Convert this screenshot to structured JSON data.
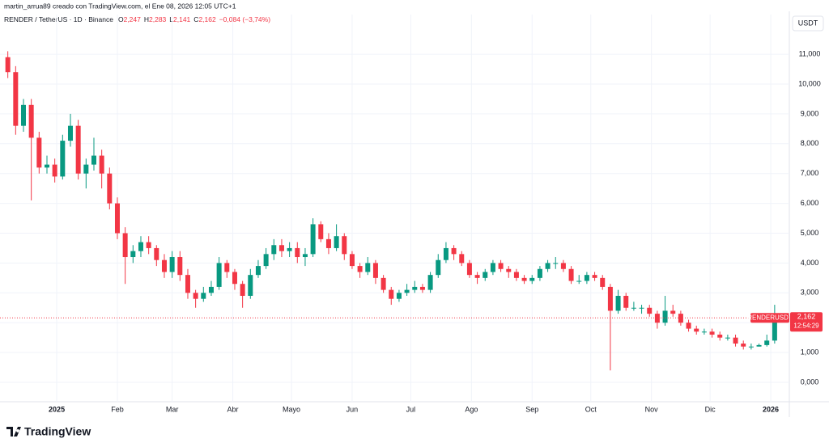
{
  "attribution": "martin_arrua89 creado con TradingView.com, el Ene 08, 2026 12:05 UTC+1",
  "symbol_line": "RENDER / TetherUS · 1D · Binance",
  "ohlc_legend": [
    {
      "key": "O",
      "value": "2,247"
    },
    {
      "key": "H",
      "value": "2,283"
    },
    {
      "key": "L",
      "value": "2,141"
    },
    {
      "key": "C",
      "value": "2,162"
    }
  ],
  "change": "−0,084 (−3,74%)",
  "currency": "USDT",
  "current": {
    "symbol": "RENDERUSDT",
    "price": "2,162",
    "countdown": "12:54:29"
  },
  "logo": "TradingView",
  "chart_data": {
    "type": "candlestick",
    "up_color": "#089981",
    "down_color": "#f23645",
    "grid": true,
    "xlim": [
      -29,
      374.5
    ],
    "ylim": [
      -0.65,
      12.33
    ],
    "xticks": [
      {
        "value": 0,
        "label": "2025"
      },
      {
        "value": 31,
        "label": "Feb"
      },
      {
        "value": 59,
        "label": "Mar"
      },
      {
        "value": 90,
        "label": "Abr"
      },
      {
        "value": 120,
        "label": "Mayo"
      },
      {
        "value": 151,
        "label": "Jun"
      },
      {
        "value": 181,
        "label": "Jul"
      },
      {
        "value": 212,
        "label": "Ago"
      },
      {
        "value": 243,
        "label": "Sep"
      },
      {
        "value": 273,
        "label": "Oct"
      },
      {
        "value": 304,
        "label": "Nov"
      },
      {
        "value": 334,
        "label": "Dic"
      },
      {
        "value": 365,
        "label": "2026"
      }
    ],
    "yticks": [
      {
        "value": 0,
        "label": "0,000"
      },
      {
        "value": 1,
        "label": "1,000"
      },
      {
        "value": 2,
        "label": "2,000"
      },
      {
        "value": 3,
        "label": "3,000"
      },
      {
        "value": 4,
        "label": "4,000"
      },
      {
        "value": 5,
        "label": "5,000"
      },
      {
        "value": 6,
        "label": "6,000"
      },
      {
        "value": 7,
        "label": "7,000"
      },
      {
        "value": 8,
        "label": "8,000"
      },
      {
        "value": 9,
        "label": "9,000"
      },
      {
        "value": 10,
        "label": "10,000"
      },
      {
        "value": 11,
        "label": "11,000"
      }
    ],
    "x": [
      -25,
      -21,
      -17,
      -13,
      -9,
      -5,
      -1,
      3,
      7,
      11,
      15,
      19,
      23,
      27,
      31,
      35,
      39,
      43,
      47,
      51,
      55,
      59,
      63,
      67,
      71,
      75,
      79,
      83,
      87,
      91,
      95,
      99,
      103,
      107,
      111,
      115,
      119,
      123,
      127,
      131,
      135,
      139,
      143,
      147,
      151,
      155,
      159,
      163,
      167,
      171,
      175,
      179,
      183,
      187,
      191,
      195,
      199,
      203,
      207,
      211,
      215,
      219,
      223,
      227,
      231,
      235,
      239,
      243,
      247,
      251,
      255,
      259,
      263,
      267,
      271,
      275,
      279,
      283,
      287,
      291,
      295,
      299,
      303,
      307,
      311,
      315,
      319,
      323,
      327,
      331,
      335,
      339,
      343,
      347,
      351,
      355,
      359,
      363,
      367,
      371
    ],
    "ohlc": [
      [
        10.9,
        11.1,
        10.2,
        10.4
      ],
      [
        10.4,
        10.6,
        8.3,
        8.6
      ],
      [
        8.6,
        9.5,
        8.4,
        9.3
      ],
      [
        9.3,
        9.5,
        6.1,
        8.2
      ],
      [
        8.2,
        8.4,
        7.0,
        7.2
      ],
      [
        7.2,
        7.6,
        7.0,
        7.3
      ],
      [
        7.3,
        7.5,
        6.7,
        6.9
      ],
      [
        6.9,
        8.3,
        6.8,
        8.1
      ],
      [
        8.1,
        9.0,
        7.9,
        8.6
      ],
      [
        8.6,
        8.8,
        6.8,
        7.0
      ],
      [
        7.0,
        7.5,
        6.5,
        7.3
      ],
      [
        7.3,
        8.2,
        7.1,
        7.6
      ],
      [
        7.6,
        7.8,
        6.5,
        7.0
      ],
      [
        7.0,
        7.2,
        5.8,
        6.0
      ],
      [
        6.0,
        6.2,
        4.8,
        5.0
      ],
      [
        5.0,
        5.2,
        3.3,
        4.2
      ],
      [
        4.2,
        4.6,
        4.0,
        4.4
      ],
      [
        4.4,
        4.9,
        4.2,
        4.7
      ],
      [
        4.7,
        4.9,
        4.3,
        4.5
      ],
      [
        4.5,
        4.6,
        3.9,
        4.1
      ],
      [
        4.1,
        4.3,
        3.5,
        3.7
      ],
      [
        3.7,
        4.4,
        3.5,
        4.2
      ],
      [
        4.2,
        4.4,
        3.4,
        3.6
      ],
      [
        3.6,
        3.8,
        2.8,
        3.0
      ],
      [
        3.0,
        3.1,
        2.5,
        2.8
      ],
      [
        2.8,
        3.2,
        2.7,
        3.0
      ],
      [
        3.0,
        3.4,
        2.9,
        3.2
      ],
      [
        3.2,
        4.2,
        3.1,
        4.0
      ],
      [
        4.0,
        4.1,
        3.5,
        3.7
      ],
      [
        3.7,
        3.8,
        3.1,
        3.3
      ],
      [
        3.3,
        3.4,
        2.5,
        2.9
      ],
      [
        2.9,
        3.8,
        2.8,
        3.6
      ],
      [
        3.6,
        4.1,
        3.5,
        3.9
      ],
      [
        3.9,
        4.5,
        3.8,
        4.3
      ],
      [
        4.3,
        4.8,
        4.1,
        4.6
      ],
      [
        4.6,
        4.8,
        4.2,
        4.4
      ],
      [
        4.4,
        4.7,
        4.2,
        4.5
      ],
      [
        4.5,
        4.7,
        4.0,
        4.2
      ],
      [
        4.2,
        4.5,
        3.9,
        4.3
      ],
      [
        4.3,
        5.5,
        4.2,
        5.3
      ],
      [
        5.3,
        5.4,
        4.7,
        4.8
      ],
      [
        4.8,
        5.0,
        4.3,
        4.5
      ],
      [
        4.5,
        5.3,
        4.4,
        4.9
      ],
      [
        4.9,
        5.0,
        4.1,
        4.3
      ],
      [
        4.3,
        4.4,
        3.8,
        3.9
      ],
      [
        3.9,
        4.0,
        3.5,
        3.7
      ],
      [
        3.7,
        4.2,
        3.6,
        4.0
      ],
      [
        4.0,
        4.1,
        3.3,
        3.5
      ],
      [
        3.5,
        3.6,
        3.0,
        3.1
      ],
      [
        3.1,
        3.2,
        2.6,
        2.8
      ],
      [
        2.8,
        3.1,
        2.7,
        3.0
      ],
      [
        3.0,
        3.3,
        2.9,
        3.1
      ],
      [
        3.1,
        3.4,
        3.0,
        3.2
      ],
      [
        3.2,
        3.3,
        3.0,
        3.1
      ],
      [
        3.1,
        3.7,
        3.0,
        3.6
      ],
      [
        3.6,
        4.3,
        3.5,
        4.1
      ],
      [
        4.1,
        4.7,
        4.0,
        4.5
      ],
      [
        4.5,
        4.6,
        4.1,
        4.3
      ],
      [
        4.3,
        4.4,
        3.9,
        4.0
      ],
      [
        4.0,
        4.1,
        3.5,
        3.6
      ],
      [
        3.6,
        3.7,
        3.3,
        3.5
      ],
      [
        3.5,
        3.8,
        3.4,
        3.7
      ],
      [
        3.7,
        4.1,
        3.6,
        4.0
      ],
      [
        4.0,
        4.1,
        3.7,
        3.8
      ],
      [
        3.8,
        3.9,
        3.5,
        3.7
      ],
      [
        3.7,
        3.8,
        3.4,
        3.5
      ],
      [
        3.5,
        3.6,
        3.3,
        3.4
      ],
      [
        3.4,
        3.6,
        3.3,
        3.5
      ],
      [
        3.5,
        3.9,
        3.4,
        3.8
      ],
      [
        3.8,
        4.1,
        3.7,
        4.0
      ],
      [
        4.0,
        4.2,
        3.8,
        4.0
      ],
      [
        4.0,
        4.1,
        3.7,
        3.8
      ],
      [
        3.8,
        3.9,
        3.3,
        3.4
      ],
      [
        3.4,
        3.6,
        3.3,
        3.4
      ],
      [
        3.4,
        3.7,
        3.3,
        3.6
      ],
      [
        3.6,
        3.7,
        3.4,
        3.5
      ],
      [
        3.5,
        3.6,
        3.1,
        3.2
      ],
      [
        3.2,
        3.3,
        0.4,
        2.4
      ],
      [
        2.4,
        3.1,
        2.3,
        2.9
      ],
      [
        2.9,
        3.0,
        2.4,
        2.5
      ],
      [
        2.5,
        2.7,
        2.4,
        2.5
      ],
      [
        2.5,
        2.6,
        2.3,
        2.5
      ],
      [
        2.5,
        2.6,
        2.2,
        2.3
      ],
      [
        2.3,
        2.4,
        1.8,
        2.0
      ],
      [
        2.0,
        2.9,
        1.9,
        2.4
      ],
      [
        2.4,
        2.6,
        2.2,
        2.3
      ],
      [
        2.3,
        2.4,
        1.9,
        2.0
      ],
      [
        2.0,
        2.1,
        1.7,
        1.8
      ],
      [
        1.8,
        1.9,
        1.6,
        1.7
      ],
      [
        1.7,
        1.8,
        1.6,
        1.7
      ],
      [
        1.7,
        1.8,
        1.5,
        1.6
      ],
      [
        1.6,
        1.7,
        1.4,
        1.5
      ],
      [
        1.5,
        1.6,
        1.4,
        1.5
      ],
      [
        1.5,
        1.6,
        1.2,
        1.3
      ],
      [
        1.3,
        1.4,
        1.1,
        1.2
      ],
      [
        1.2,
        1.3,
        1.1,
        1.2
      ],
      [
        1.2,
        1.3,
        1.2,
        1.25
      ],
      [
        1.25,
        1.6,
        1.2,
        1.4
      ],
      [
        1.4,
        2.6,
        1.3,
        2.247
      ],
      [
        2.247,
        2.283,
        2.141,
        2.162
      ]
    ]
  }
}
